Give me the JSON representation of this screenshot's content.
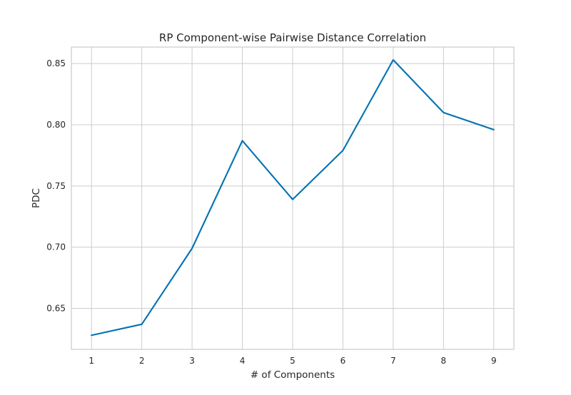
{
  "chart_data": {
    "type": "line",
    "title": "RP Component-wise Pairwise Distance Correlation",
    "xlabel": "# of Components",
    "ylabel": "PDC",
    "x": [
      1,
      2,
      3,
      4,
      5,
      6,
      7,
      8,
      9
    ],
    "series": [
      {
        "values": [
          0.628,
          0.637,
          0.699,
          0.787,
          0.739,
          0.779,
          0.853,
          0.81,
          0.796
        ],
        "color": "#0072b2"
      }
    ],
    "xlim": [
      0.6,
      9.4
    ],
    "ylim": [
      0.6165,
      0.8635
    ],
    "x_ticks": [
      "1",
      "2",
      "3",
      "4",
      "5",
      "6",
      "7",
      "8",
      "9"
    ],
    "y_ticks": [
      "0.65",
      "0.70",
      "0.75",
      "0.80",
      "0.85"
    ],
    "grid": true,
    "grid_color": "#cccccc",
    "frame_color": "#cccccc"
  }
}
